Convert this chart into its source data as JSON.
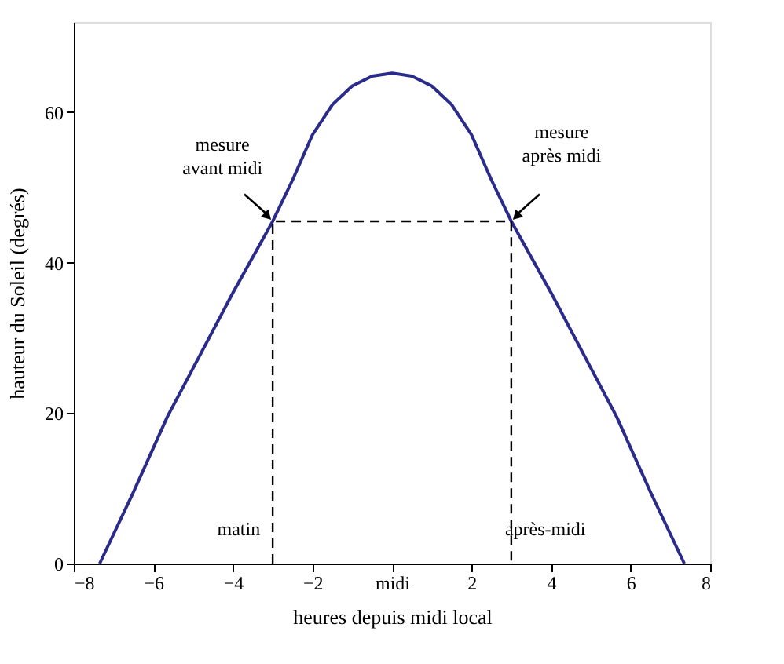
{
  "chart_data": {
    "type": "line",
    "xlabel": "heures depuis midi local",
    "ylabel": "hauteur du Soleil (degrés)",
    "xlim": [
      -8,
      8
    ],
    "ylim": [
      0,
      72
    ],
    "xticks": [
      -8,
      -6,
      -4,
      -2,
      {
        "value": 0,
        "label": "midi"
      },
      2,
      4,
      6,
      8
    ],
    "yticks": [
      0,
      20,
      40,
      60
    ],
    "grid": false,
    "marker": "none",
    "series": [
      {
        "color": "#2b2b8c",
        "line_style": "solid",
        "x": [
          -7.35,
          -6.5,
          -5.65,
          -5,
          -4,
          -3,
          -2.5,
          -2,
          -1.5,
          -1,
          -0.5,
          0,
          0.5,
          1,
          1.5,
          2,
          2.5,
          3,
          4,
          5,
          5.65,
          6.5,
          7.35
        ],
        "values": [
          0,
          9.5,
          19.5,
          26,
          36,
          45.5,
          51,
          57,
          61,
          63.5,
          64.8,
          65.2,
          64.8,
          63.5,
          61,
          57,
          51,
          45.5,
          36,
          26,
          19.5,
          9.5,
          0
        ]
      },
      {
        "color": "#000000",
        "line_style": "dashed",
        "x": [
          -3,
          -3,
          3,
          3
        ],
        "values": [
          0,
          45.5,
          45.5,
          0
        ]
      }
    ],
    "annotations": [
      "mesure\navant midi",
      "mesure\naprès midi",
      "matin",
      "après-midi"
    ]
  }
}
